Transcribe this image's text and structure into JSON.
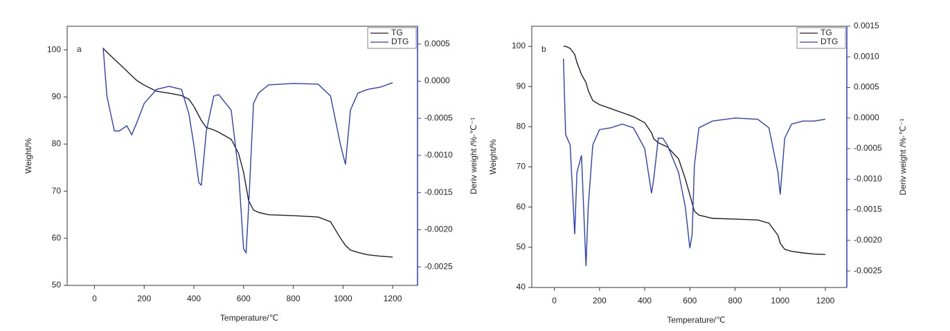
{
  "chart_data": [
    {
      "type": "line",
      "panel_label": "a",
      "x_label": "Temperature/℃",
      "y_label": "Weight/%",
      "y2_label": "Deriv weight /%·℃⁻¹",
      "xlim": [
        -110,
        1300
      ],
      "xticks": [
        0,
        200,
        400,
        600,
        800,
        1000,
        1200
      ],
      "ylim": [
        50,
        105
      ],
      "yticks": [
        50,
        60,
        70,
        80,
        90,
        100
      ],
      "y2lim": [
        -0.00275,
        0.00074
      ],
      "y2ticks": [
        {
          "value": -0.0025,
          "label": "-0.0025"
        },
        {
          "value": -0.002,
          "label": "-0.0020"
        },
        {
          "value": -0.0015,
          "label": "-0.0015"
        },
        {
          "value": -0.001,
          "label": "-0.0010"
        },
        -0.0005,
        {
          "value": 0,
          "label": "0.0000"
        },
        0.0005
      ],
      "legend": "upper right",
      "x": [
        35,
        50,
        80,
        100,
        130,
        150,
        170,
        200,
        250,
        300,
        350,
        380,
        400,
        420,
        430,
        450,
        480,
        500,
        550,
        580,
        600,
        610,
        620,
        640,
        660,
        700,
        800,
        900,
        950,
        990,
        1010,
        1030,
        1060,
        1100,
        1150,
        1200
      ],
      "series": [
        {
          "name": "TG",
          "color": "#1c1c30",
          "values": [
            100.3,
            99.5,
            98,
            97,
            95.5,
            94.5,
            93.5,
            92.5,
            91.2,
            90.8,
            90.3,
            89.5,
            88,
            86,
            85,
            83.5,
            83,
            82.5,
            81,
            78,
            74,
            71,
            68,
            66,
            65.5,
            65,
            64.8,
            64.5,
            63.5,
            60,
            58.5,
            57.5,
            57,
            56.5,
            56.2,
            56
          ]
        },
        {
          "name": "DTG",
          "color": "#2a3fc0",
          "axis": "y2",
          "values": [
            0.00045,
            -0.0002,
            -0.00067,
            -0.00067,
            -0.0006,
            -0.00072,
            -0.00056,
            -0.0003,
            -0.00011,
            -7e-05,
            -0.00011,
            -0.00044,
            -0.00086,
            -0.00137,
            -0.0014,
            -0.00067,
            -0.0002,
            -0.00018,
            -0.00039,
            -0.00123,
            -0.00226,
            -0.00231,
            -0.0017,
            -0.0003,
            -0.00016,
            -5e-05,
            -3e-05,
            -4e-05,
            -0.0002,
            -0.00086,
            -0.00112,
            -0.00039,
            -0.00016,
            -0.00011,
            -8e-05,
            -2e-05
          ]
        }
      ]
    },
    {
      "type": "line",
      "panel_label": "b",
      "x_label": "Temperature/℃",
      "y_label": "Weight/%",
      "y2_label": "Deriv weight /%·℃⁻¹",
      "xlim": [
        -100,
        1295
      ],
      "xticks": [
        0,
        200,
        400,
        600,
        800,
        1000,
        1200
      ],
      "ylim": [
        40,
        105
      ],
      "yticks": [
        40,
        50,
        60,
        70,
        80,
        90,
        100
      ],
      "y2lim": [
        -0.00277,
        0.0015
      ],
      "y2ticks": [
        {
          "value": -0.0025,
          "label": "-0.0025"
        },
        {
          "value": -0.002,
          "label": "-0.0020"
        },
        {
          "value": -0.0015,
          "label": "-0.0015"
        },
        {
          "value": -0.001,
          "label": "-0.0010"
        },
        -0.0005,
        {
          "value": 0,
          "label": "0.0000"
        },
        0.0005,
        {
          "value": 0.001,
          "label": "0.0010"
        },
        0.0015
      ],
      "legend": "upper right",
      "x": [
        40,
        50,
        70,
        90,
        100,
        120,
        140,
        150,
        170,
        200,
        250,
        300,
        350,
        400,
        430,
        440,
        460,
        480,
        500,
        550,
        580,
        600,
        610,
        620,
        640,
        700,
        800,
        900,
        950,
        990,
        1000,
        1020,
        1050,
        1100,
        1150,
        1200
      ],
      "series": [
        {
          "name": "TG",
          "color": "#1c1c30",
          "values": [
            100,
            100,
            99.5,
            98,
            96,
            93,
            91,
            89,
            86.5,
            85.5,
            84.5,
            83.5,
            82.5,
            81,
            78.5,
            77,
            76,
            75.5,
            75,
            72,
            67,
            63,
            61,
            59,
            58,
            57.2,
            57,
            56.8,
            56,
            53,
            51,
            49.5,
            49,
            48.6,
            48.3,
            48.2
          ]
        },
        {
          "name": "DTG",
          "color": "#2a3fc0",
          "axis": "y2",
          "values": [
            0.00097,
            -0.00027,
            -0.00044,
            -0.0019,
            -0.00089,
            -0.00061,
            -0.00242,
            -0.00146,
            -0.00044,
            -0.00019,
            -0.00016,
            -0.0001,
            -0.00016,
            -0.0005,
            -0.00123,
            -0.001,
            -0.00033,
            -0.00033,
            -0.00044,
            -0.00089,
            -0.00146,
            -0.00213,
            -0.0019,
            -0.00078,
            -0.00016,
            -5e-05,
            0,
            -2e-05,
            -0.00016,
            -0.00089,
            -0.00125,
            -0.00033,
            -0.0001,
            -5e-05,
            -5e-05,
            -2e-05
          ]
        }
      ]
    }
  ]
}
